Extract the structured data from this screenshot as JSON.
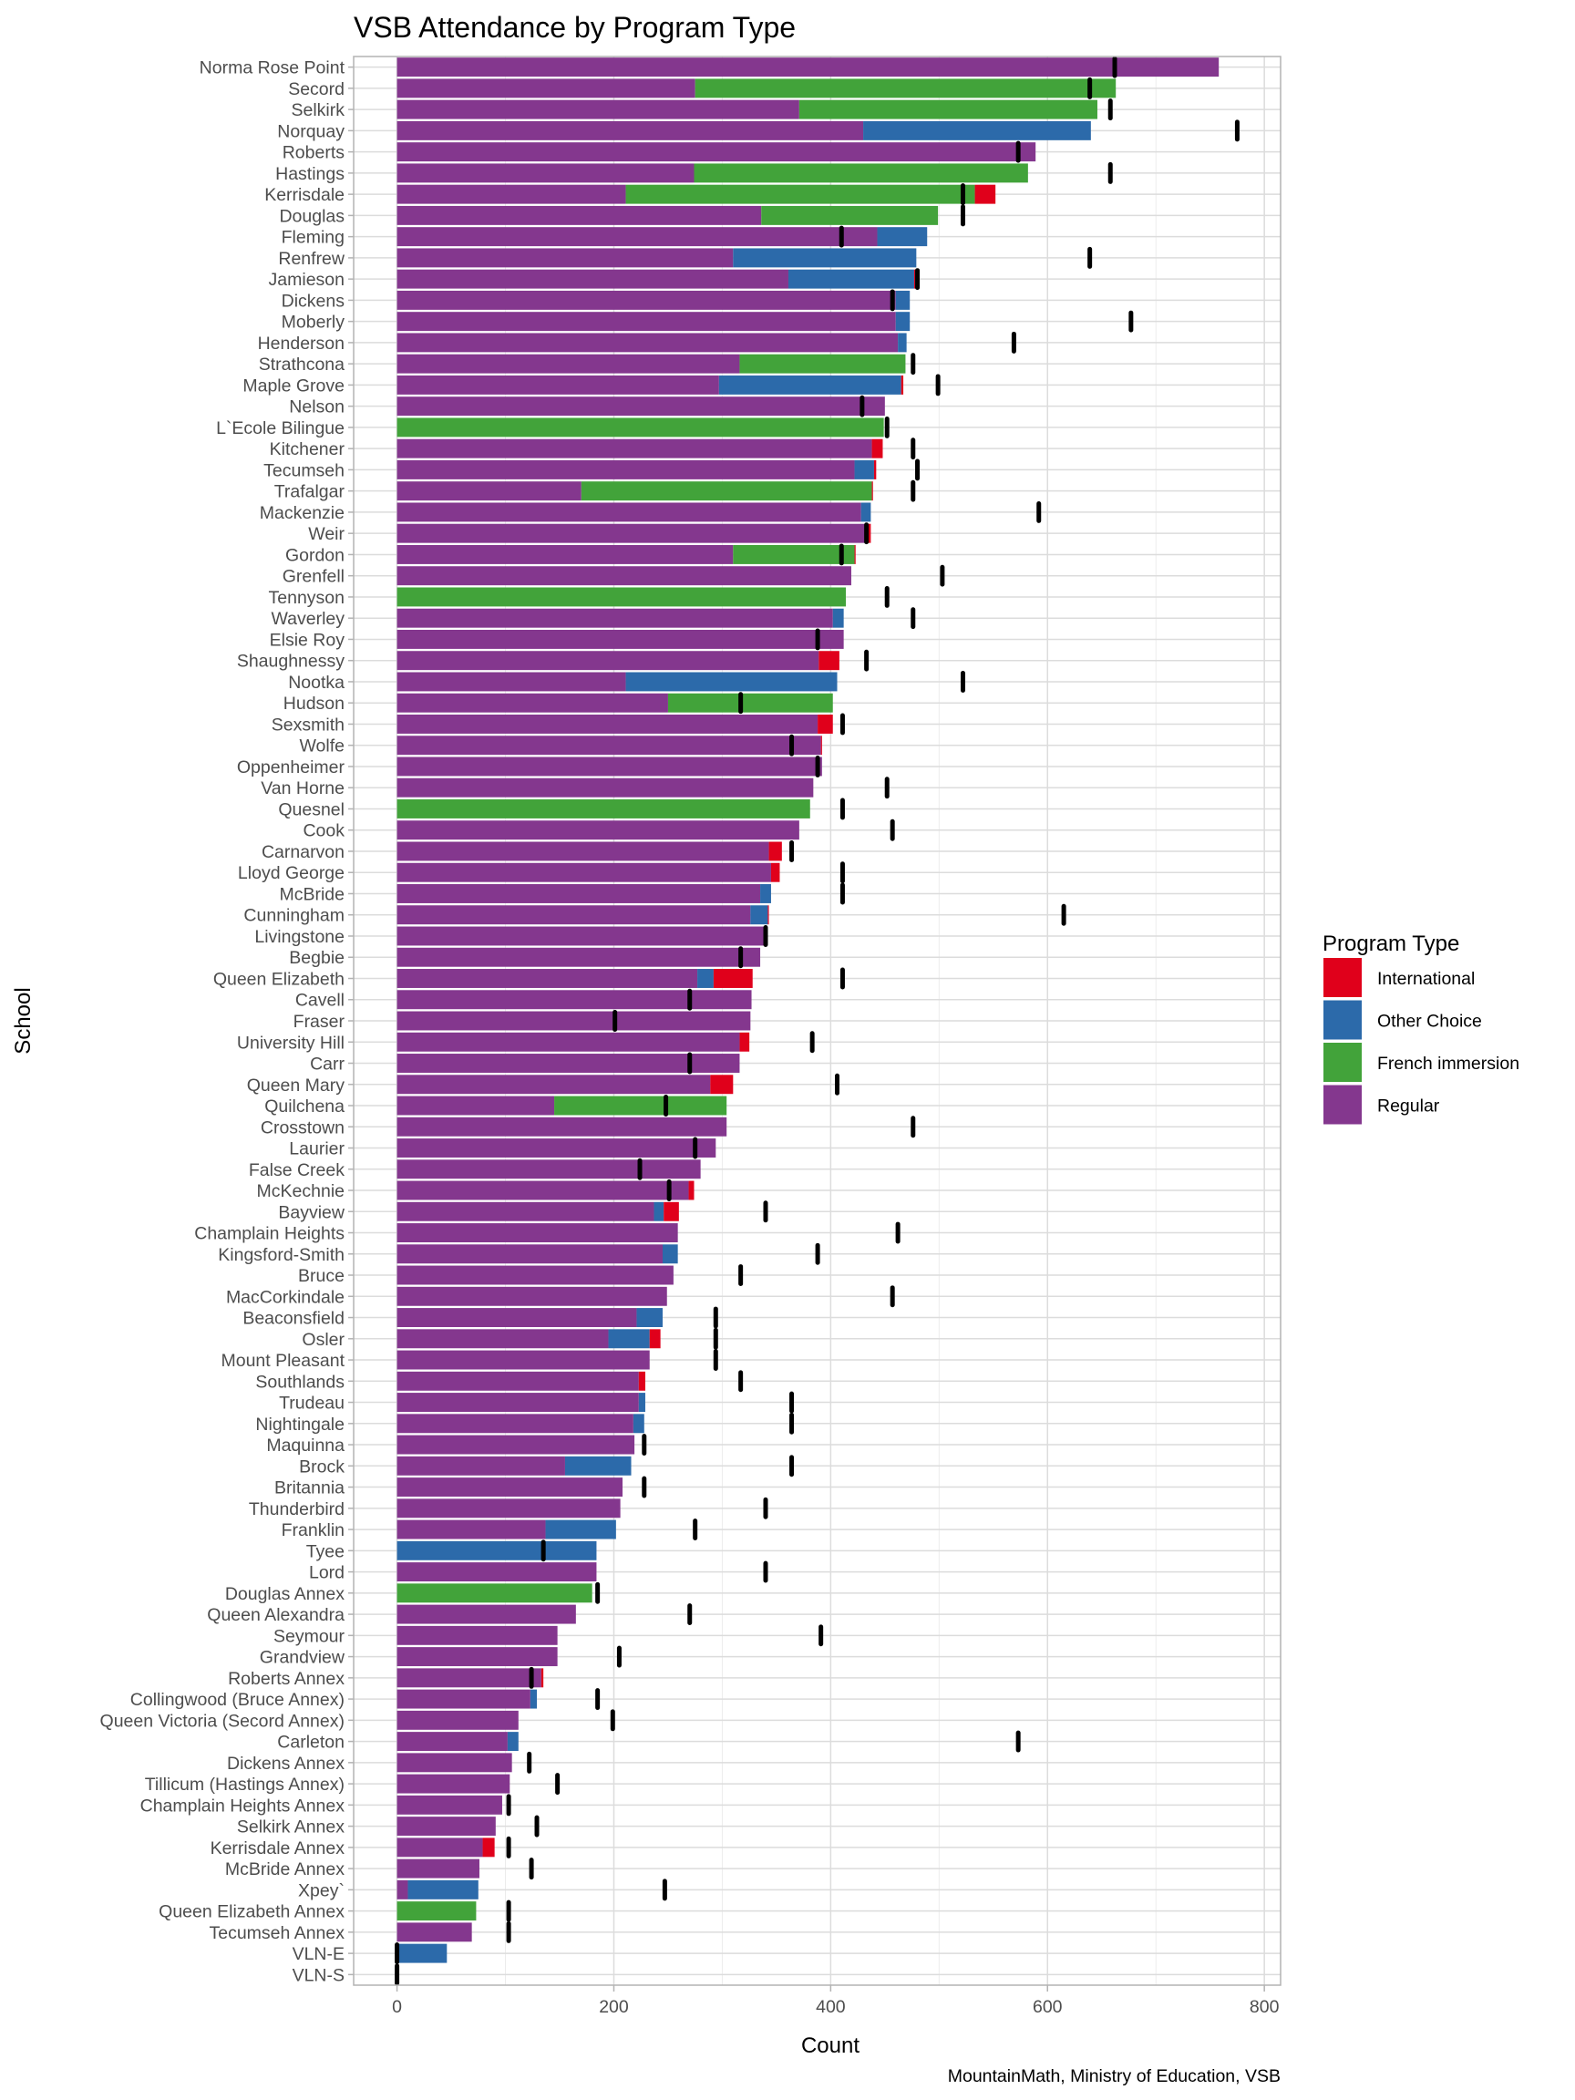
{
  "chart_data": {
    "type": "bar",
    "orientation": "horizontal",
    "stacked": true,
    "title": "VSB Attendance by Program Type",
    "xlabel": "Count",
    "ylabel": "School",
    "caption": "MountainMath, Ministry of Education, VSB",
    "xlim": [
      -40,
      815
    ],
    "xticks": [
      0,
      200,
      400,
      600,
      800
    ],
    "xtick_labels": [
      "0",
      "200",
      "400",
      "600",
      "800"
    ],
    "grid": true,
    "legend": {
      "title": "Program Type",
      "placement": "right",
      "entries": [
        {
          "name": "International",
          "color": "#e0001b"
        },
        {
          "name": "Other Choice",
          "color": "#2c6aaa"
        },
        {
          "name": "French immersion",
          "color": "#42a33a"
        },
        {
          "name": "Regular",
          "color": "#84378e"
        }
      ]
    },
    "stack_order": [
      "Regular",
      "French immersion",
      "Other Choice",
      "International"
    ],
    "capacity_marker": {
      "description": "black vertical tick marking capacity",
      "color": "#000000"
    },
    "schools": [
      {
        "name": "Norma Rose Point",
        "Regular": 758,
        "French immersion": 0,
        "Other Choice": 0,
        "International": 0,
        "capacity": 662
      },
      {
        "name": "Secord",
        "Regular": 275,
        "French immersion": 388,
        "Other Choice": 0,
        "International": 0,
        "capacity": 639
      },
      {
        "name": "Selkirk",
        "Regular": 371,
        "French immersion": 275,
        "Other Choice": 0,
        "International": 0,
        "capacity": 658
      },
      {
        "name": "Norquay",
        "Regular": 430,
        "French immersion": 0,
        "Other Choice": 210,
        "International": 0,
        "capacity": 775
      },
      {
        "name": "Roberts",
        "Regular": 589,
        "French immersion": 0,
        "Other Choice": 0,
        "International": 0,
        "capacity": 573
      },
      {
        "name": "Hastings",
        "Regular": 274,
        "French immersion": 308,
        "Other Choice": 0,
        "International": 0,
        "capacity": 658
      },
      {
        "name": "Kerrisdale",
        "Regular": 211,
        "French immersion": 322,
        "Other Choice": 0,
        "International": 19,
        "capacity": 522
      },
      {
        "name": "Douglas",
        "Regular": 336,
        "French immersion": 163,
        "Other Choice": 0,
        "International": 0,
        "capacity": 522
      },
      {
        "name": "Fleming",
        "Regular": 443,
        "French immersion": 0,
        "Other Choice": 46,
        "International": 0,
        "capacity": 410
      },
      {
        "name": "Renfrew",
        "Regular": 310,
        "French immersion": 0,
        "Other Choice": 169,
        "International": 0,
        "capacity": 639
      },
      {
        "name": "Jamieson",
        "Regular": 361,
        "French immersion": 0,
        "Other Choice": 116,
        "International": 1,
        "capacity": 480
      },
      {
        "name": "Dickens",
        "Regular": 460,
        "French immersion": 0,
        "Other Choice": 13,
        "International": 0,
        "capacity": 457
      },
      {
        "name": "Moberly",
        "Regular": 460,
        "French immersion": 0,
        "Other Choice": 13,
        "International": 0,
        "capacity": 677
      },
      {
        "name": "Henderson",
        "Regular": 462,
        "French immersion": 0,
        "Other Choice": 8,
        "International": 0,
        "capacity": 569
      },
      {
        "name": "Strathcona",
        "Regular": 316,
        "French immersion": 153,
        "Other Choice": 0,
        "International": 0,
        "capacity": 476
      },
      {
        "name": "Maple Grove",
        "Regular": 297,
        "French immersion": 0,
        "Other Choice": 168,
        "International": 2,
        "capacity": 499
      },
      {
        "name": "Nelson",
        "Regular": 450,
        "French immersion": 0,
        "Other Choice": 0,
        "International": 0,
        "capacity": 429
      },
      {
        "name": "L`Ecole Bilingue",
        "Regular": 0,
        "French immersion": 449,
        "Other Choice": 0,
        "International": 0,
        "capacity": 452
      },
      {
        "name": "Kitchener",
        "Regular": 438,
        "French immersion": 0,
        "Other Choice": 0,
        "International": 10,
        "capacity": 476
      },
      {
        "name": "Tecumseh",
        "Regular": 422,
        "French immersion": 0,
        "Other Choice": 18,
        "International": 2,
        "capacity": 480
      },
      {
        "name": "Trafalgar",
        "Regular": 170,
        "French immersion": 268,
        "Other Choice": 0,
        "International": 1,
        "capacity": 476
      },
      {
        "name": "Mackenzie",
        "Regular": 428,
        "French immersion": 0,
        "Other Choice": 9,
        "International": 0,
        "capacity": 592
      },
      {
        "name": "Weir",
        "Regular": 435,
        "French immersion": 0,
        "Other Choice": 0,
        "International": 2,
        "capacity": 433
      },
      {
        "name": "Gordon",
        "Regular": 310,
        "French immersion": 112,
        "Other Choice": 0,
        "International": 1,
        "capacity": 410
      },
      {
        "name": "Grenfell",
        "Regular": 419,
        "French immersion": 0,
        "Other Choice": 0,
        "International": 0,
        "capacity": 503
      },
      {
        "name": "Tennyson",
        "Regular": 0,
        "French immersion": 414,
        "Other Choice": 0,
        "International": 0,
        "capacity": 452
      },
      {
        "name": "Waverley",
        "Regular": 402,
        "French immersion": 0,
        "Other Choice": 10,
        "International": 0,
        "capacity": 476
      },
      {
        "name": "Elsie Roy",
        "Regular": 412,
        "French immersion": 0,
        "Other Choice": 0,
        "International": 0,
        "capacity": 388
      },
      {
        "name": "Shaughnessy",
        "Regular": 389,
        "French immersion": 0,
        "Other Choice": 0,
        "International": 19,
        "capacity": 433
      },
      {
        "name": "Nootka",
        "Regular": 211,
        "French immersion": 0,
        "Other Choice": 195,
        "International": 0,
        "capacity": 522
      },
      {
        "name": "Hudson",
        "Regular": 250,
        "French immersion": 152,
        "Other Choice": 0,
        "International": 0,
        "capacity": 317
      },
      {
        "name": "Sexsmith",
        "Regular": 388,
        "French immersion": 0,
        "Other Choice": 0,
        "International": 14,
        "capacity": 411
      },
      {
        "name": "Wolfe",
        "Regular": 391,
        "French immersion": 0,
        "Other Choice": 0,
        "International": 1,
        "capacity": 364
      },
      {
        "name": "Oppenheimer",
        "Regular": 392,
        "French immersion": 0,
        "Other Choice": 0,
        "International": 0,
        "capacity": 388
      },
      {
        "name": "Van Horne",
        "Regular": 384,
        "French immersion": 0,
        "Other Choice": 0,
        "International": 0,
        "capacity": 452
      },
      {
        "name": "Quesnel",
        "Regular": 0,
        "French immersion": 381,
        "Other Choice": 0,
        "International": 0,
        "capacity": 411
      },
      {
        "name": "Cook",
        "Regular": 371,
        "French immersion": 0,
        "Other Choice": 0,
        "International": 0,
        "capacity": 457
      },
      {
        "name": "Carnarvon",
        "Regular": 343,
        "French immersion": 0,
        "Other Choice": 0,
        "International": 12,
        "capacity": 364
      },
      {
        "name": "Lloyd George",
        "Regular": 345,
        "French immersion": 0,
        "Other Choice": 0,
        "International": 8,
        "capacity": 411
      },
      {
        "name": "McBride",
        "Regular": 335,
        "French immersion": 0,
        "Other Choice": 10,
        "International": 0,
        "capacity": 411
      },
      {
        "name": "Cunningham",
        "Regular": 326,
        "French immersion": 0,
        "Other Choice": 16,
        "International": 1,
        "capacity": 615
      },
      {
        "name": "Livingstone",
        "Regular": 340,
        "French immersion": 0,
        "Other Choice": 0,
        "International": 0,
        "capacity": 340
      },
      {
        "name": "Begbie",
        "Regular": 335,
        "French immersion": 0,
        "Other Choice": 0,
        "International": 0,
        "capacity": 317
      },
      {
        "name": "Queen Elizabeth",
        "Regular": 277,
        "French immersion": 0,
        "Other Choice": 15,
        "International": 36,
        "capacity": 411
      },
      {
        "name": "Cavell",
        "Regular": 327,
        "French immersion": 0,
        "Other Choice": 0,
        "International": 0,
        "capacity": 270
      },
      {
        "name": "Fraser",
        "Regular": 326,
        "French immersion": 0,
        "Other Choice": 0,
        "International": 0,
        "capacity": 201
      },
      {
        "name": "University Hill",
        "Regular": 316,
        "French immersion": 0,
        "Other Choice": 0,
        "International": 9,
        "capacity": 383
      },
      {
        "name": "Carr",
        "Regular": 316,
        "French immersion": 0,
        "Other Choice": 0,
        "International": 0,
        "capacity": 270
      },
      {
        "name": "Queen Mary",
        "Regular": 289,
        "French immersion": 0,
        "Other Choice": 0,
        "International": 21,
        "capacity": 406
      },
      {
        "name": "Quilchena",
        "Regular": 145,
        "French immersion": 159,
        "Other Choice": 0,
        "International": 0,
        "capacity": 248
      },
      {
        "name": "Crosstown",
        "Regular": 304,
        "French immersion": 0,
        "Other Choice": 0,
        "International": 0,
        "capacity": 476
      },
      {
        "name": "Laurier",
        "Regular": 294,
        "French immersion": 0,
        "Other Choice": 0,
        "International": 0,
        "capacity": 275
      },
      {
        "name": "False Creek",
        "Regular": 280,
        "French immersion": 0,
        "Other Choice": 0,
        "International": 0,
        "capacity": 224
      },
      {
        "name": "McKechnie",
        "Regular": 269,
        "French immersion": 0,
        "Other Choice": 0,
        "International": 5,
        "capacity": 251
      },
      {
        "name": "Bayview",
        "Regular": 237,
        "French immersion": 0,
        "Other Choice": 9,
        "International": 14,
        "capacity": 340
      },
      {
        "name": "Champlain Heights",
        "Regular": 259,
        "French immersion": 0,
        "Other Choice": 0,
        "International": 0,
        "capacity": 462
      },
      {
        "name": "Kingsford-Smith",
        "Regular": 245,
        "French immersion": 0,
        "Other Choice": 14,
        "International": 0,
        "capacity": 388
      },
      {
        "name": "Bruce",
        "Regular": 255,
        "French immersion": 0,
        "Other Choice": 0,
        "International": 0,
        "capacity": 317
      },
      {
        "name": "MacCorkindale",
        "Regular": 249,
        "French immersion": 0,
        "Other Choice": 0,
        "International": 0,
        "capacity": 457
      },
      {
        "name": "Beaconsfield",
        "Regular": 221,
        "French immersion": 0,
        "Other Choice": 24,
        "International": 0,
        "capacity": 294
      },
      {
        "name": "Osler",
        "Regular": 195,
        "French immersion": 0,
        "Other Choice": 38,
        "International": 10,
        "capacity": 294
      },
      {
        "name": "Mount Pleasant",
        "Regular": 233,
        "French immersion": 0,
        "Other Choice": 0,
        "International": 0,
        "capacity": 294
      },
      {
        "name": "Southlands",
        "Regular": 223,
        "French immersion": 0,
        "Other Choice": 0,
        "International": 6,
        "capacity": 317
      },
      {
        "name": "Trudeau",
        "Regular": 223,
        "French immersion": 0,
        "Other Choice": 6,
        "International": 0,
        "capacity": 364
      },
      {
        "name": "Nightingale",
        "Regular": 218,
        "French immersion": 0,
        "Other Choice": 10,
        "International": 0,
        "capacity": 364
      },
      {
        "name": "Maquinna",
        "Regular": 219,
        "French immersion": 0,
        "Other Choice": 0,
        "International": 0,
        "capacity": 228
      },
      {
        "name": "Brock",
        "Regular": 155,
        "French immersion": 0,
        "Other Choice": 61,
        "International": 0,
        "capacity": 364
      },
      {
        "name": "Britannia",
        "Regular": 208,
        "French immersion": 0,
        "Other Choice": 0,
        "International": 0,
        "capacity": 228
      },
      {
        "name": "Thunderbird",
        "Regular": 206,
        "French immersion": 0,
        "Other Choice": 0,
        "International": 0,
        "capacity": 340
      },
      {
        "name": "Franklin",
        "Regular": 137,
        "French immersion": 0,
        "Other Choice": 65,
        "International": 0,
        "capacity": 275
      },
      {
        "name": "Tyee",
        "Regular": 0,
        "French immersion": 0,
        "Other Choice": 184,
        "International": 0,
        "capacity": 135
      },
      {
        "name": "Lord",
        "Regular": 184,
        "French immersion": 0,
        "Other Choice": 0,
        "International": 0,
        "capacity": 340
      },
      {
        "name": "Douglas Annex",
        "Regular": 0,
        "French immersion": 180,
        "Other Choice": 0,
        "International": 0,
        "capacity": 185
      },
      {
        "name": "Queen Alexandra",
        "Regular": 165,
        "French immersion": 0,
        "Other Choice": 0,
        "International": 0,
        "capacity": 270
      },
      {
        "name": "Seymour",
        "Regular": 148,
        "French immersion": 0,
        "Other Choice": 0,
        "International": 0,
        "capacity": 391
      },
      {
        "name": "Grandview",
        "Regular": 148,
        "French immersion": 0,
        "Other Choice": 0,
        "International": 0,
        "capacity": 205
      },
      {
        "name": "Roberts Annex",
        "Regular": 133,
        "French immersion": 0,
        "Other Choice": 0,
        "International": 2,
        "capacity": 124
      },
      {
        "name": "Collingwood (Bruce Annex)",
        "Regular": 123,
        "French immersion": 0,
        "Other Choice": 6,
        "International": 0,
        "capacity": 185
      },
      {
        "name": "Queen Victoria (Secord Annex)",
        "Regular": 112,
        "French immersion": 0,
        "Other Choice": 0,
        "International": 0,
        "capacity": 199
      },
      {
        "name": "Carleton",
        "Regular": 102,
        "French immersion": 0,
        "Other Choice": 10,
        "International": 0,
        "capacity": 573
      },
      {
        "name": "Dickens Annex",
        "Regular": 106,
        "French immersion": 0,
        "Other Choice": 0,
        "International": 0,
        "capacity": 122
      },
      {
        "name": "Tillicum (Hastings Annex)",
        "Regular": 104,
        "French immersion": 0,
        "Other Choice": 0,
        "International": 0,
        "capacity": 148
      },
      {
        "name": "Champlain Heights Annex",
        "Regular": 97,
        "French immersion": 0,
        "Other Choice": 0,
        "International": 0,
        "capacity": 103
      },
      {
        "name": "Selkirk Annex",
        "Regular": 91,
        "French immersion": 0,
        "Other Choice": 0,
        "International": 0,
        "capacity": 129
      },
      {
        "name": "Kerrisdale Annex",
        "Regular": 79,
        "French immersion": 0,
        "Other Choice": 0,
        "International": 11,
        "capacity": 103
      },
      {
        "name": "McBride Annex",
        "Regular": 76,
        "French immersion": 0,
        "Other Choice": 0,
        "International": 0,
        "capacity": 124
      },
      {
        "name": "Xpey`",
        "Regular": 10,
        "French immersion": 0,
        "Other Choice": 65,
        "International": 0,
        "capacity": 247
      },
      {
        "name": "Queen Elizabeth Annex",
        "Regular": 0,
        "French immersion": 73,
        "Other Choice": 0,
        "International": 0,
        "capacity": 103
      },
      {
        "name": "Tecumseh Annex",
        "Regular": 69,
        "French immersion": 0,
        "Other Choice": 0,
        "International": 0,
        "capacity": 103
      },
      {
        "name": "VLN-E",
        "Regular": 0,
        "French immersion": 0,
        "Other Choice": 46,
        "International": 0,
        "capacity": 0
      },
      {
        "name": "VLN-S",
        "Regular": 0,
        "French immersion": 0,
        "Other Choice": 0,
        "International": 0,
        "capacity": 0
      }
    ]
  }
}
